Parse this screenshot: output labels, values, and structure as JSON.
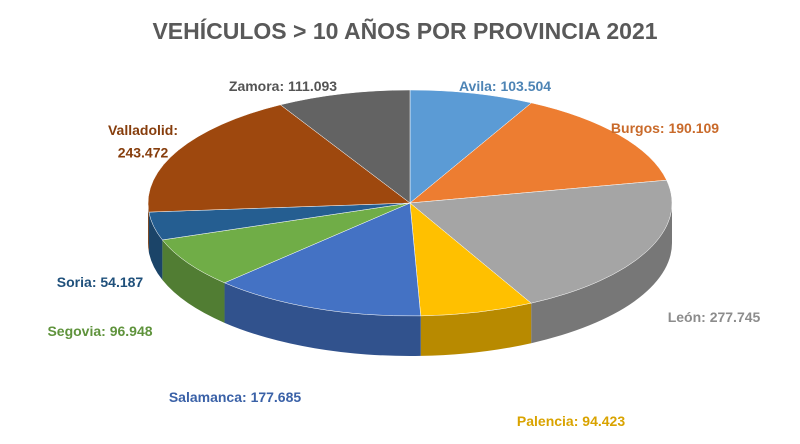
{
  "chart_data": {
    "type": "pie3d",
    "title": "VEHÍCULOS > 10 AÑOS POR PROVINCIA 2021",
    "categories": [
      "Avila",
      "Burgos",
      "León",
      "Palencia",
      "Salamanca",
      "Segovia",
      "Soria",
      "Valladolid",
      "Zamora"
    ],
    "values": [
      103504,
      190109,
      277745,
      94423,
      177685,
      96948,
      54187,
      243472,
      111093
    ],
    "value_labels": [
      "103.504",
      "190.109",
      "277.745",
      "94.423",
      "177.685",
      "96.948",
      "54.187",
      "243.472",
      "111.093"
    ],
    "label_separator": ": ",
    "colors": [
      "#5b9bd5",
      "#ed7d31",
      "#a5a5a5",
      "#ffc000",
      "#4472c4",
      "#70ad47",
      "#255e91",
      "#9e480e",
      "#636363"
    ]
  }
}
